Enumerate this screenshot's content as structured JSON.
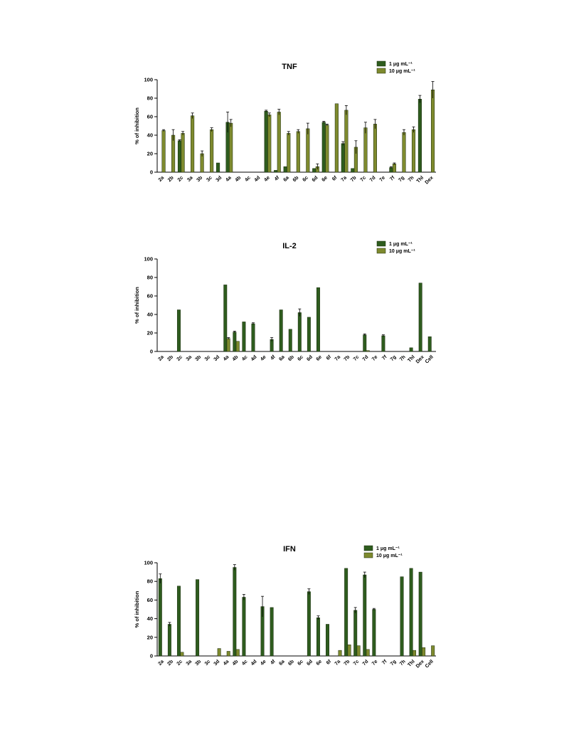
{
  "colors": {
    "dark": "#2e5c1e",
    "light": "#7e8a2e",
    "stroke": "#1a2a0e"
  },
  "chart_data": [
    {
      "type": "bar",
      "title": "TNF",
      "ylabel": "% of inhibition",
      "xlabel": "",
      "ylim": [
        0,
        100
      ],
      "yticks": [
        "0",
        "20",
        "40",
        "60",
        "80",
        "100"
      ],
      "categories": [
        "2a",
        "2b",
        "2c",
        "3a",
        "3b",
        "3c",
        "3d",
        "4a",
        "4b",
        "4c",
        "4d",
        "4e",
        "4f",
        "6a",
        "6b",
        "6c",
        "6d",
        "6e",
        "6f",
        "7a",
        "7b",
        "7c",
        "7d",
        "7e",
        "7f",
        "7g",
        "7h",
        "Thl",
        "Dex"
      ],
      "series": [
        {
          "name": "1 μg mL⁻¹",
          "values": [
            0,
            0,
            34,
            0,
            0,
            0,
            10,
            54,
            0,
            0,
            0,
            66,
            2,
            6,
            0,
            0,
            4,
            54,
            0,
            31,
            4,
            0,
            0,
            0,
            5,
            0,
            0,
            79,
            0
          ]
        },
        {
          "name": "10 μg mL⁻¹",
          "values": [
            45,
            40,
            42,
            61,
            20,
            46,
            0,
            53,
            0,
            0,
            0,
            62,
            65,
            42,
            44,
            47,
            6,
            51,
            74,
            67,
            27,
            48,
            52,
            0,
            9,
            43,
            46,
            0,
            89
          ]
        }
      ],
      "errors": [
        [
          0,
          0,
          1,
          0,
          0,
          0,
          0,
          11,
          0,
          0,
          0,
          1,
          0,
          0,
          0,
          0,
          0,
          1,
          0,
          2,
          0,
          0,
          0,
          0,
          1,
          0,
          0,
          4,
          0
        ],
        [
          1,
          6,
          2,
          3,
          3,
          2,
          0,
          4,
          0,
          0,
          0,
          2,
          3,
          2,
          2,
          6,
          3,
          1,
          0,
          5,
          7,
          6,
          5,
          0,
          1,
          3,
          3,
          0,
          9
        ]
      ]
    },
    {
      "type": "bar",
      "title": "IL-2",
      "ylabel": "% of inhibition",
      "xlabel": "",
      "ylim": [
        0,
        100
      ],
      "yticks": [
        "0",
        "20",
        "40",
        "60",
        "80",
        "100"
      ],
      "categories": [
        "2a",
        "2b",
        "2c",
        "3a",
        "3b",
        "3c",
        "3d",
        "4a",
        "4b",
        "4c",
        "4d",
        "4e",
        "4f",
        "6a",
        "6b",
        "6c",
        "6d",
        "6e",
        "6f",
        "7a",
        "7b",
        "7c",
        "7d",
        "7e",
        "7f",
        "7g",
        "7h",
        "Thl",
        "Dex",
        "Cell"
      ],
      "series": [
        {
          "name": "1 μg mL⁻¹",
          "values": [
            0,
            0,
            45,
            0,
            0,
            0,
            0,
            72,
            21,
            32,
            30,
            0,
            13,
            45,
            24,
            42,
            37,
            69,
            0,
            0,
            0,
            0,
            18,
            0,
            17,
            0,
            0,
            4,
            74,
            16
          ]
        },
        {
          "name": "10 μg mL⁻¹",
          "values": [
            0,
            0,
            0,
            0,
            0,
            0,
            0,
            14,
            11,
            0,
            0,
            0,
            0,
            0,
            0,
            0,
            0,
            0,
            0,
            0,
            0,
            0,
            1,
            0,
            0,
            0,
            0,
            0,
            0,
            0
          ]
        }
      ],
      "errors": [
        [
          0,
          0,
          0,
          0,
          0,
          0,
          0,
          0,
          1,
          0,
          1,
          0,
          2,
          0,
          0,
          4,
          0,
          0,
          0,
          0,
          0,
          0,
          1,
          0,
          1,
          0,
          0,
          0,
          0,
          0
        ],
        [
          0,
          0,
          0,
          0,
          0,
          0,
          0,
          1,
          0,
          0,
          0,
          0,
          0,
          0,
          0,
          0,
          0,
          0,
          0,
          0,
          0,
          0,
          0,
          0,
          0,
          0,
          0,
          0,
          0,
          0
        ]
      ]
    },
    {
      "type": "bar",
      "title": "IFN",
      "ylabel": "% of inhibition",
      "xlabel": "",
      "ylim": [
        0,
        100
      ],
      "yticks": [
        "0",
        "20",
        "40",
        "60",
        "80",
        "100"
      ],
      "categories": [
        "2a",
        "2b",
        "2c",
        "3a",
        "3b",
        "3c",
        "3d",
        "4a",
        "4b",
        "4c",
        "4d",
        "4e",
        "4f",
        "6a",
        "6b",
        "6c",
        "6d",
        "6e",
        "6f",
        "7a",
        "7b",
        "7c",
        "7d",
        "7e",
        "7f",
        "7g",
        "7h",
        "Thl",
        "Dex",
        "Cell"
      ],
      "series": [
        {
          "name": "1 μg mL⁻¹",
          "values": [
            83,
            34,
            75,
            0,
            82,
            0,
            0,
            0,
            95,
            63,
            0,
            53,
            52,
            0,
            0,
            0,
            69,
            41,
            34,
            0,
            94,
            49,
            87,
            50,
            0,
            0,
            85,
            94,
            90,
            0
          ]
        },
        {
          "name": "10  μg mL⁻¹",
          "values": [
            0,
            0,
            4,
            0,
            0,
            0,
            8,
            5,
            7,
            0,
            0,
            0,
            0,
            0,
            0,
            0,
            0,
            0,
            0,
            6,
            12,
            11,
            7,
            0,
            0,
            0,
            0,
            6,
            9,
            11
          ]
        }
      ],
      "errors": [
        [
          5,
          2,
          0,
          0,
          0,
          0,
          0,
          0,
          3,
          3,
          0,
          11,
          0,
          0,
          0,
          0,
          3,
          2,
          0,
          0,
          0,
          3,
          3,
          1,
          0,
          0,
          0,
          0,
          0,
          0
        ],
        [
          0,
          0,
          0,
          0,
          0,
          0,
          0,
          0,
          0,
          0,
          0,
          0,
          0,
          0,
          0,
          0,
          0,
          0,
          0,
          0,
          0,
          0,
          0,
          0,
          0,
          0,
          0,
          0,
          0,
          0
        ]
      ]
    }
  ]
}
